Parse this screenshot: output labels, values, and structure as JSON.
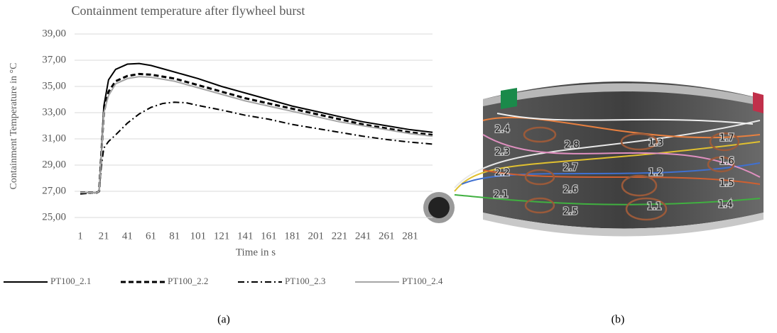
{
  "chart_data": {
    "type": "line",
    "title": "Containment temperature after flywheel burst",
    "x_label": "Time in s",
    "y_label": "Containment Temperature in °C",
    "x": [
      1,
      15,
      17,
      19,
      21,
      25,
      31,
      41,
      51,
      61,
      71,
      81,
      91,
      101,
      121,
      141,
      161,
      181,
      201,
      221,
      241,
      261,
      281,
      300
    ],
    "series": [
      {
        "name": "PT100_2.1",
        "color": "#000000",
        "style": "solid",
        "values": [
          26.9,
          26.9,
          27.0,
          30.0,
          33.5,
          35.5,
          36.3,
          36.7,
          36.75,
          36.6,
          36.35,
          36.1,
          35.85,
          35.6,
          35.0,
          34.5,
          34.0,
          33.5,
          33.1,
          32.7,
          32.3,
          32.0,
          31.7,
          31.5
        ]
      },
      {
        "name": "PT100_2.2",
        "color": "#000000",
        "style": "dashed",
        "values": [
          26.9,
          26.9,
          27.0,
          30.0,
          33.0,
          34.6,
          35.4,
          35.8,
          35.95,
          35.9,
          35.75,
          35.6,
          35.35,
          35.1,
          34.6,
          34.1,
          33.7,
          33.3,
          32.9,
          32.5,
          32.1,
          31.8,
          31.5,
          31.3
        ]
      },
      {
        "name": "PT100_2.3",
        "color": "#000000",
        "style": "dashdot",
        "values": [
          26.8,
          26.9,
          27.0,
          29.0,
          30.3,
          30.8,
          31.3,
          32.2,
          32.9,
          33.4,
          33.7,
          33.8,
          33.75,
          33.55,
          33.2,
          32.8,
          32.5,
          32.1,
          31.8,
          31.5,
          31.2,
          30.95,
          30.75,
          30.6
        ]
      },
      {
        "name": "PT100_2.4",
        "color": "#a6a6a6",
        "style": "solid",
        "values": [
          26.9,
          26.9,
          27.0,
          29.8,
          33.0,
          34.3,
          35.2,
          35.6,
          35.75,
          35.7,
          35.55,
          35.4,
          35.15,
          34.9,
          34.4,
          33.9,
          33.5,
          33.1,
          32.7,
          32.3,
          32.0,
          31.7,
          31.4,
          31.2
        ]
      }
    ],
    "xlim": [
      1,
      300
    ],
    "xticks": [
      1,
      21,
      41,
      61,
      81,
      101,
      121,
      141,
      161,
      181,
      201,
      221,
      241,
      261,
      281
    ],
    "ylim": [
      25,
      39
    ],
    "yticks": [
      {
        "value": 25,
        "label": "25,00"
      },
      {
        "value": 27,
        "label": "27,00"
      },
      {
        "value": 29,
        "label": "29,00"
      },
      {
        "value": 31,
        "label": "31,00"
      },
      {
        "value": 33,
        "label": "33,00"
      },
      {
        "value": 35,
        "label": "35,00"
      },
      {
        "value": 37,
        "label": "37,00"
      },
      {
        "value": 39,
        "label": "39,00"
      }
    ],
    "grid": true,
    "legend": "bottom"
  },
  "panels": [
    "(a)",
    "(b)"
  ],
  "photo_labels": [
    "2.4",
    "2.8",
    "1.3",
    "1.7",
    "2.3",
    "2.7",
    "1.2",
    "1.6",
    "2.2",
    "2.6",
    "1.5",
    "2.1",
    "2.5",
    "1.1",
    "1.4"
  ]
}
